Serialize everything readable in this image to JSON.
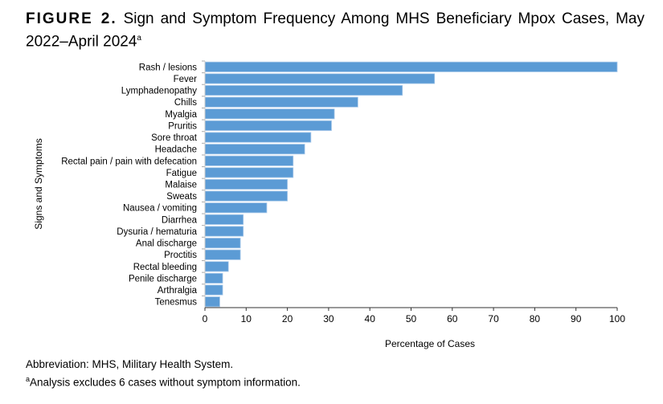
{
  "title": {
    "figure_label": "FIGURE 2.",
    "text": "Sign and Symptom Frequency Among MHS Beneficiary Mpox Cases, May 2022–April 2024",
    "superscript": "a"
  },
  "chart_data": {
    "type": "bar",
    "orientation": "horizontal",
    "title": "Sign and Symptom Frequency Among MHS Beneficiary Mpox Cases, May 2022–April 2024",
    "xlabel": "Percentage of Cases",
    "ylabel": "Signs and Symptoms",
    "xlim": [
      0,
      100
    ],
    "xticks": [
      0,
      10,
      20,
      30,
      40,
      50,
      60,
      70,
      80,
      90,
      100
    ],
    "grid": false,
    "bar_color": "#5b9bd5",
    "categories": [
      "Rash / lesions",
      "Fever",
      "Lymphadenopathy",
      "Chills",
      "Myalgia",
      "Pruritis",
      "Sore throat",
      "Headache",
      "Rectal pain / pain with defecation",
      "Fatigue",
      "Malaise",
      "Sweats",
      "Nausea / vomiting",
      "Diarrhea",
      "Dysuria / hematuria",
      "Anal discharge",
      "Proctitis",
      "Rectal bleeding",
      "Penile discharge",
      "Arthralgia",
      "Tenesmus"
    ],
    "values": [
      100,
      55.7,
      47.9,
      37.1,
      31.4,
      30.7,
      25.7,
      24.2,
      21.4,
      21.4,
      20.0,
      20.0,
      15.0,
      9.3,
      9.3,
      8.6,
      8.6,
      5.7,
      4.3,
      4.3,
      3.6
    ]
  },
  "notes": {
    "abbreviation": "Abbreviation: MHS, Military Health System.",
    "footnote_marker": "a",
    "footnote": "Analysis excludes 6 cases without symptom information."
  }
}
